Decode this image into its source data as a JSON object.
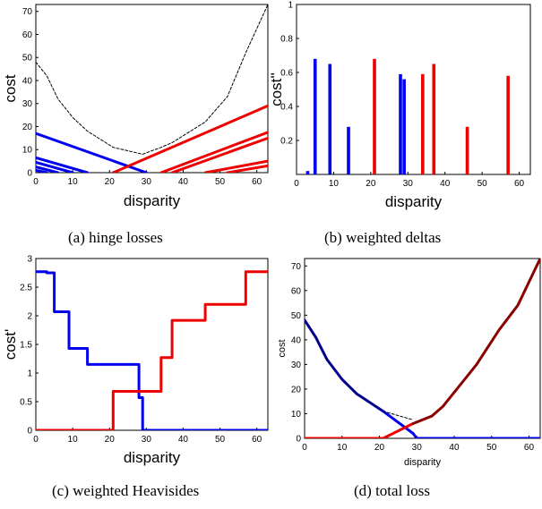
{
  "chart_data": [
    {
      "type": "line",
      "caption": "(a) hinge losses",
      "xlabel": "disparity",
      "ylabel": "cost",
      "xlim": [
        0,
        63
      ],
      "ylim": [
        0,
        73
      ],
      "xticks": [
        0,
        10,
        20,
        30,
        40,
        50,
        60
      ],
      "yticks": [
        0,
        10,
        20,
        30,
        40,
        50,
        60,
        70
      ],
      "grid": false,
      "series": [
        {
          "color": "#0000ee",
          "x": [
            0,
            30
          ],
          "y": [
            17,
            0
          ]
        },
        {
          "color": "#0000ee",
          "x": [
            0,
            14
          ],
          "y": [
            6.5,
            0
          ]
        },
        {
          "color": "#0000ee",
          "x": [
            0,
            10
          ],
          "y": [
            4.5,
            0
          ]
        },
        {
          "color": "#0000ee",
          "x": [
            0,
            6
          ],
          "y": [
            2.5,
            0
          ]
        },
        {
          "color": "#0000ee",
          "x": [
            0,
            3
          ],
          "y": [
            1,
            0
          ]
        },
        {
          "color": "#ee0000",
          "x": [
            21,
            63
          ],
          "y": [
            0,
            29
          ]
        },
        {
          "color": "#ee0000",
          "x": [
            34,
            63
          ],
          "y": [
            0,
            17.5
          ]
        },
        {
          "color": "#ee0000",
          "x": [
            37,
            63
          ],
          "y": [
            0,
            15
          ]
        },
        {
          "color": "#ee0000",
          "x": [
            46,
            63
          ],
          "y": [
            0,
            5
          ]
        },
        {
          "color": "#ee0000",
          "x": [
            52,
            63
          ],
          "y": [
            0,
            3
          ]
        },
        {
          "color": "#000000",
          "dashed": true,
          "x": [
            0,
            3,
            6,
            10,
            14,
            21,
            29,
            34,
            37,
            46,
            52,
            57,
            63
          ],
          "y": [
            48,
            42,
            32,
            24,
            18,
            11,
            8,
            11,
            13,
            22,
            33,
            52,
            73
          ]
        }
      ]
    },
    {
      "type": "bar",
      "caption": "(b) weighted deltas",
      "xlabel": "disparity",
      "ylabel": "cost''",
      "xlim": [
        0,
        63
      ],
      "ylim": [
        0,
        1
      ],
      "xticks": [
        0,
        10,
        20,
        30,
        40,
        50,
        60
      ],
      "yticks": [
        0.2,
        0.4,
        0.6,
        0.8,
        1
      ],
      "grid": false,
      "series": [
        {
          "color": "#0000ee",
          "x": [
            3,
            5,
            9,
            14,
            28,
            29
          ],
          "values": [
            0.02,
            0.68,
            0.65,
            0.28,
            0.59,
            0.56
          ]
        },
        {
          "color": "#ee0000",
          "x": [
            21,
            34,
            37,
            46,
            57
          ],
          "values": [
            0.68,
            0.59,
            0.65,
            0.28,
            0.58
          ]
        }
      ]
    },
    {
      "type": "line",
      "caption": "(c) weighted Heavisides",
      "xlabel": "disparity",
      "ylabel": "cost'",
      "xlim": [
        0,
        63
      ],
      "ylim": [
        0,
        3
      ],
      "xticks": [
        0,
        10,
        20,
        30,
        40,
        50,
        60
      ],
      "yticks": [
        0,
        0.5,
        1,
        1.5,
        2,
        2.5,
        3
      ],
      "grid": false,
      "series": [
        {
          "color": "#0000ee",
          "step": true,
          "x": [
            0,
            3,
            5,
            9,
            14,
            28,
            29,
            63
          ],
          "y": [
            2.77,
            2.75,
            2.07,
            1.43,
            1.15,
            0.57,
            0,
            0
          ]
        },
        {
          "color": "#ee0000",
          "step": true,
          "x": [
            0,
            21,
            29,
            34,
            37,
            46,
            57,
            63
          ],
          "y": [
            0,
            0.68,
            0.68,
            1.27,
            1.92,
            2.2,
            2.77,
            2.77
          ]
        }
      ]
    },
    {
      "type": "line",
      "caption": "(d) total loss",
      "xlabel": "disparity",
      "ylabel": "cost",
      "xlim": [
        0,
        63
      ],
      "ylim": [
        0,
        73
      ],
      "xticks": [
        0,
        10,
        20,
        30,
        40,
        50,
        60
      ],
      "yticks": [
        0,
        10,
        20,
        30,
        40,
        50,
        60,
        70
      ],
      "grid": false,
      "series": [
        {
          "color": "#00008b",
          "x": [
            0,
            3,
            6,
            10,
            14,
            21
          ],
          "y": [
            48,
            41,
            32,
            24,
            18,
            11
          ]
        },
        {
          "color": "#0000ee",
          "x": [
            21,
            29,
            30,
            63
          ],
          "y": [
            11,
            2,
            0,
            0
          ]
        },
        {
          "color": "#ee0000",
          "x": [
            0,
            21,
            29
          ],
          "y": [
            0,
            0,
            6
          ]
        },
        {
          "color": "#8b0000",
          "x": [
            29,
            34,
            37,
            46,
            52,
            57,
            63
          ],
          "y": [
            6,
            9,
            13,
            30,
            44,
            54,
            73
          ]
        },
        {
          "color": "#000000",
          "dashed": true,
          "x": [
            21,
            29
          ],
          "y": [
            11,
            7.5
          ]
        }
      ]
    }
  ]
}
